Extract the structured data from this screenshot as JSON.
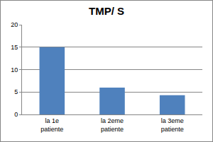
{
  "chart_data": {
    "type": "bar",
    "title": "TMP/ S",
    "categories": [
      "la 1e patiente",
      "la 2eme patiente",
      "la 3eme patiente"
    ],
    "values": [
      15,
      6,
      4.3
    ],
    "color": "#4f81bd",
    "ylim": [
      0,
      20
    ],
    "yticks": [
      0,
      5,
      10,
      15,
      20
    ],
    "grid": true
  }
}
